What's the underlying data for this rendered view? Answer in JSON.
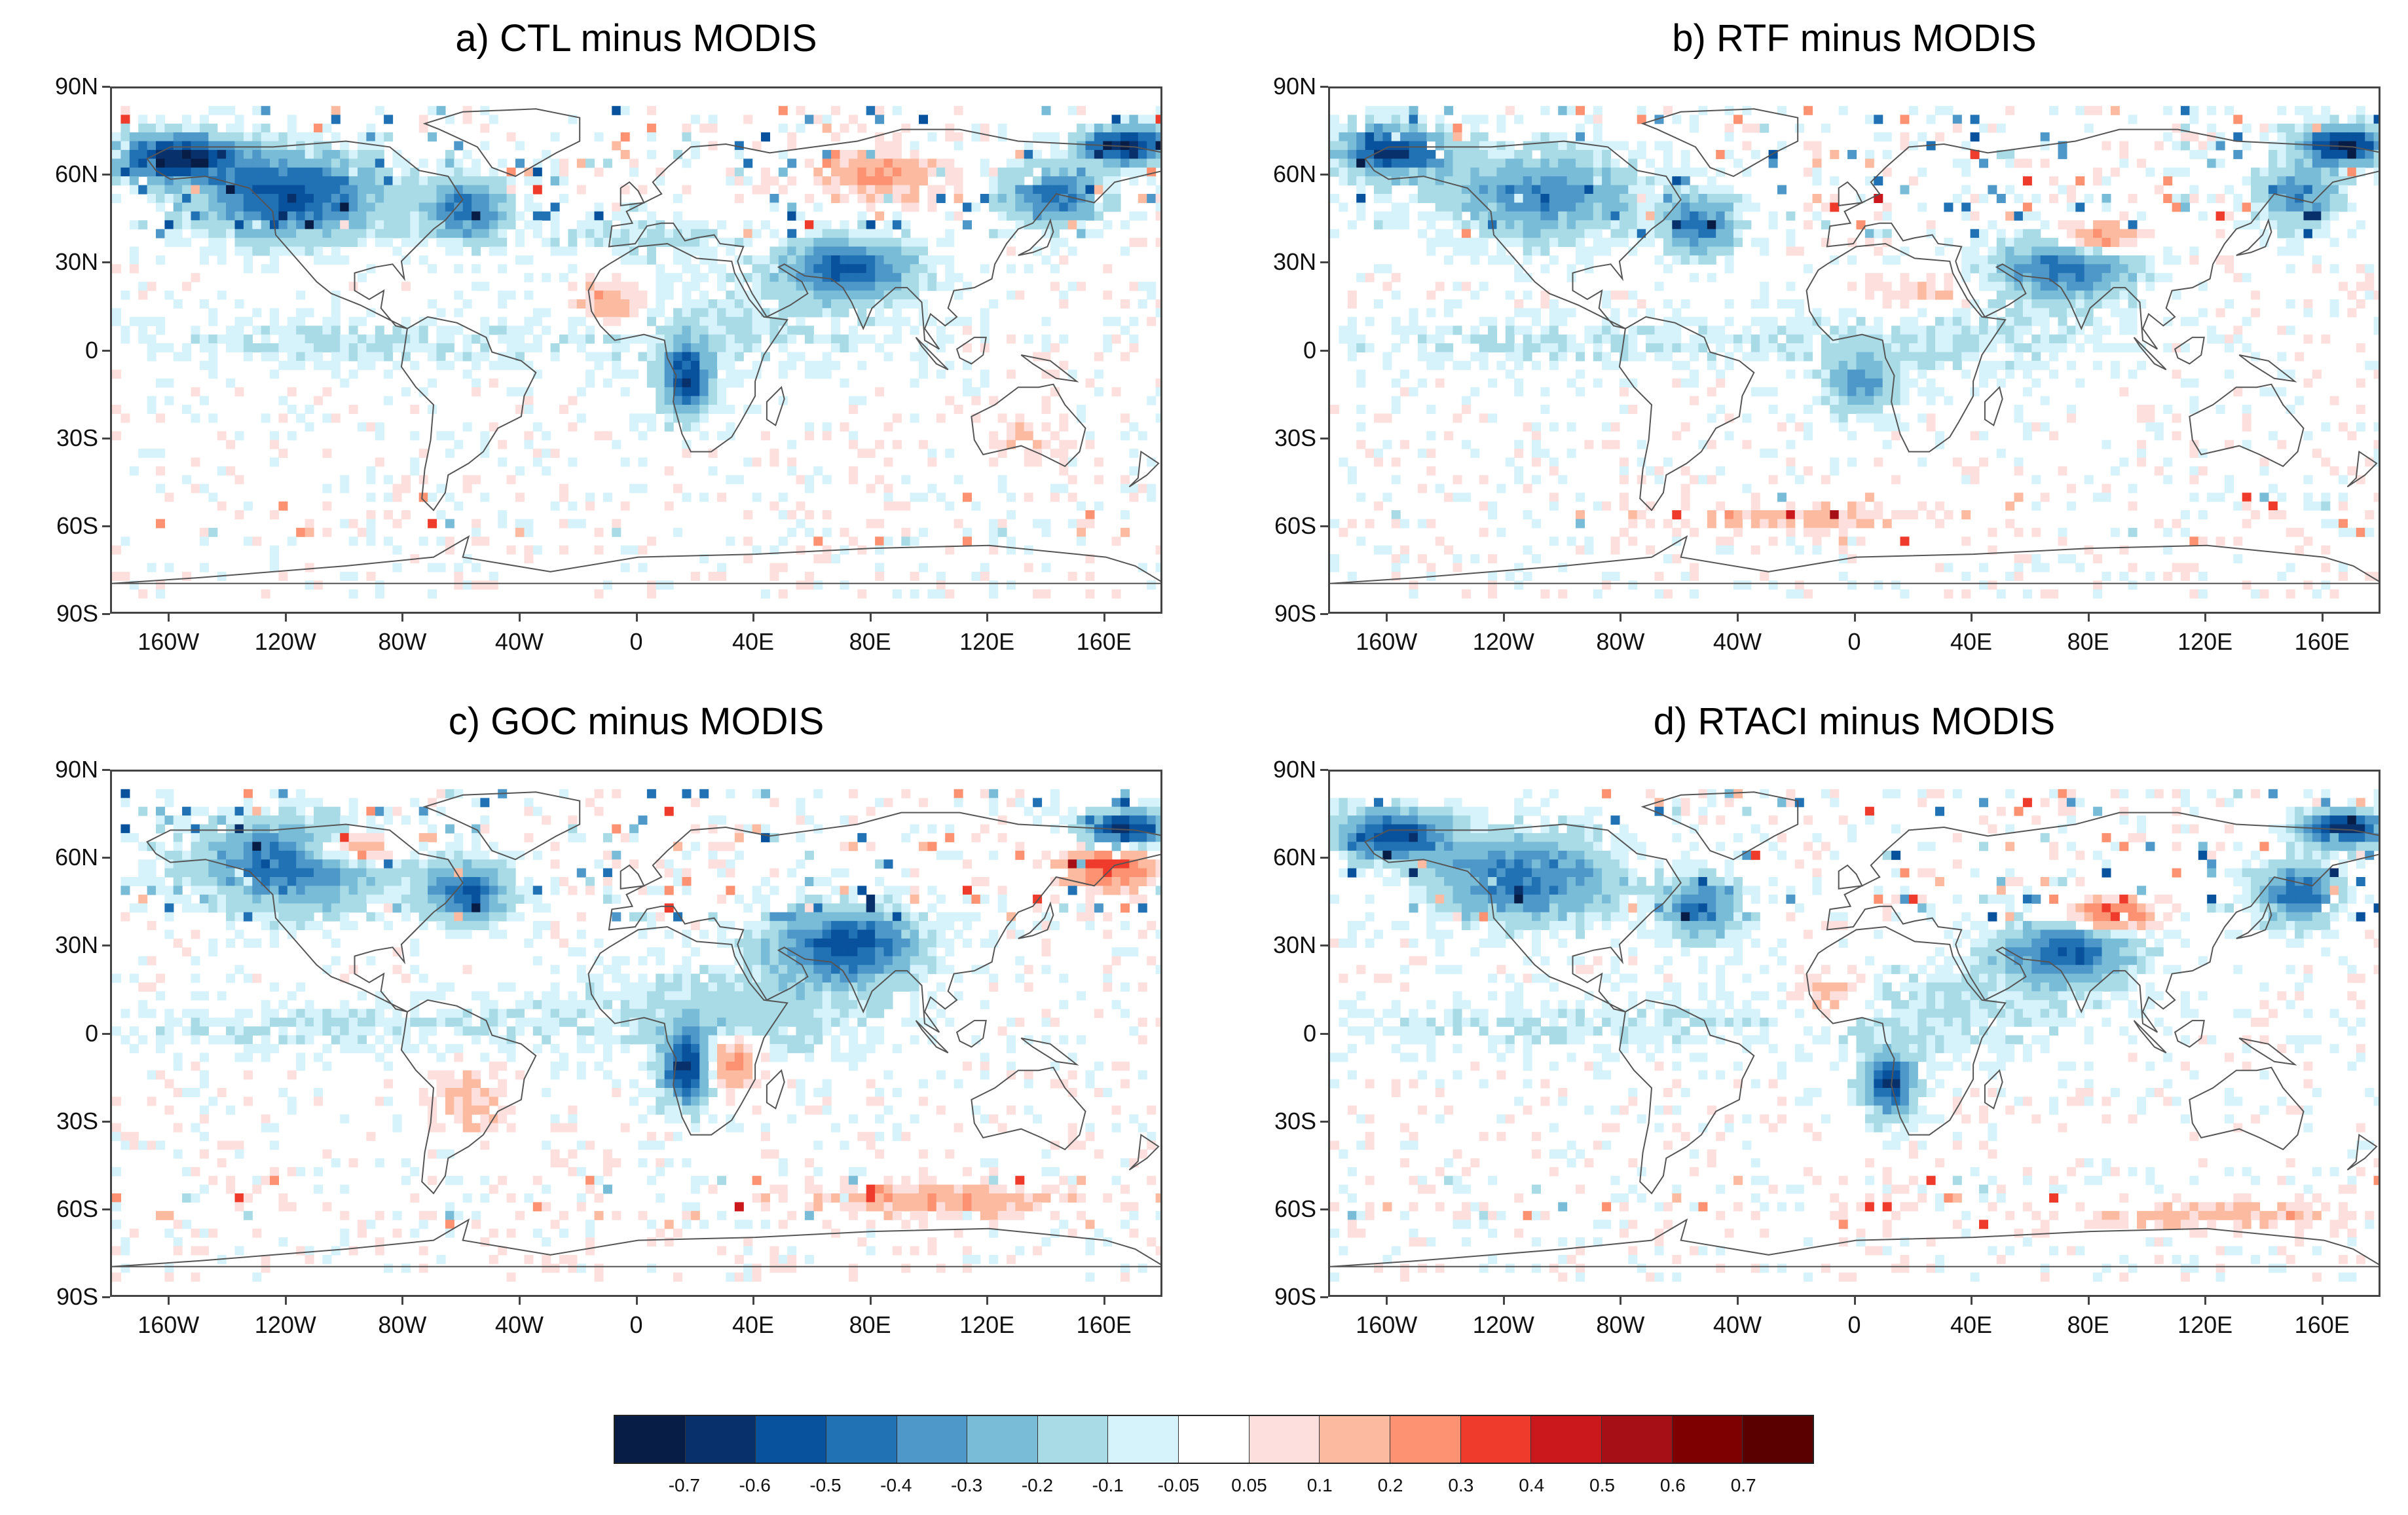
{
  "panels": [
    {
      "title": "a) CTL minus MODIS",
      "seed": 11
    },
    {
      "title": "b) RTF minus MODIS",
      "seed": 23
    },
    {
      "title": "c) GOC minus MODIS",
      "seed": 37
    },
    {
      "title": "d) RTACI minus MODIS",
      "seed": 51
    }
  ],
  "lat_labels": [
    "90N",
    "60N",
    "30N",
    "0",
    "30S",
    "60S",
    "90S"
  ],
  "lon_labels": [
    "160W",
    "120W",
    "80W",
    "40W",
    "0",
    "40E",
    "80E",
    "120E",
    "160E"
  ],
  "colorbar": {
    "labels": [
      "-0.7",
      "-0.6",
      "-0.5",
      "-0.4",
      "-0.3",
      "-0.2",
      "-0.1",
      "-0.05",
      "0.05",
      "0.1",
      "0.2",
      "0.3",
      "0.4",
      "0.5",
      "0.6",
      "0.7"
    ],
    "colors": [
      "#081d45",
      "#08306b",
      "#08519c",
      "#2171b5",
      "#4e97c9",
      "#79bcd8",
      "#a8dbe6",
      "#d6f2fa",
      "#ffffff",
      "#fde0dd",
      "#fcbba1",
      "#fc9272",
      "#ef3b2c",
      "#cb181d",
      "#a50f15",
      "#7f0000",
      "#5a0000"
    ]
  }
}
